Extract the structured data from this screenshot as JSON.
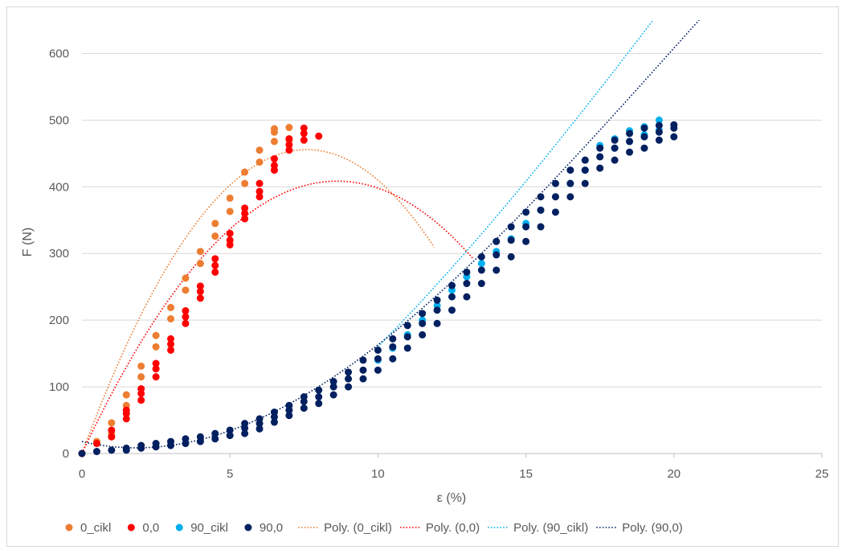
{
  "chart_data": {
    "type": "scatter",
    "xlabel": "ε (%)",
    "ylabel": "F (N)",
    "xlim": [
      0,
      25
    ],
    "ylim": [
      0,
      650
    ],
    "x_ticks": [
      "0",
      "5",
      "10",
      "15",
      "20",
      "25"
    ],
    "y_ticks": [
      "0",
      "100",
      "200",
      "300",
      "400",
      "500",
      "600"
    ],
    "grid": "horizontal",
    "legend": "bottom",
    "series": [
      {
        "name": "0_cikl",
        "color": "#ED7D31",
        "points": [
          [
            0,
            0
          ],
          [
            0.5,
            18
          ],
          [
            1,
            30
          ],
          [
            1,
            46
          ],
          [
            1.5,
            72
          ],
          [
            1.5,
            88
          ],
          [
            2,
            115
          ],
          [
            2,
            131
          ],
          [
            2.5,
            160
          ],
          [
            2.5,
            177
          ],
          [
            3,
            202
          ],
          [
            3,
            219
          ],
          [
            3.5,
            245
          ],
          [
            3.5,
            263
          ],
          [
            4,
            285
          ],
          [
            4,
            303
          ],
          [
            4.5,
            326
          ],
          [
            4.5,
            345
          ],
          [
            5,
            363
          ],
          [
            5,
            383
          ],
          [
            5.5,
            405
          ],
          [
            5.5,
            422
          ],
          [
            6,
            437
          ],
          [
            6,
            455
          ],
          [
            6.5,
            468
          ],
          [
            6.5,
            482
          ],
          [
            6.5,
            487
          ],
          [
            7,
            470
          ],
          [
            7,
            489
          ]
        ]
      },
      {
        "name": "0,0",
        "color": "#FF0000",
        "points": [
          [
            0,
            0
          ],
          [
            0.5,
            15
          ],
          [
            1,
            25
          ],
          [
            1,
            35
          ],
          [
            1.5,
            52
          ],
          [
            1.5,
            60
          ],
          [
            1.5,
            65
          ],
          [
            2,
            80
          ],
          [
            2,
            90
          ],
          [
            2,
            97
          ],
          [
            2.5,
            115
          ],
          [
            2.5,
            127
          ],
          [
            2.5,
            135
          ],
          [
            3,
            155
          ],
          [
            3,
            164
          ],
          [
            3,
            172
          ],
          [
            3.5,
            195
          ],
          [
            3.5,
            205
          ],
          [
            3.5,
            214
          ],
          [
            4,
            233
          ],
          [
            4,
            243
          ],
          [
            4,
            251
          ],
          [
            4.5,
            272
          ],
          [
            4.5,
            282
          ],
          [
            4.5,
            292
          ],
          [
            5,
            313
          ],
          [
            5,
            320
          ],
          [
            5,
            330
          ],
          [
            5.5,
            352
          ],
          [
            5.5,
            360
          ],
          [
            5.5,
            368
          ],
          [
            6,
            385
          ],
          [
            6,
            393
          ],
          [
            6,
            405
          ],
          [
            6.5,
            425
          ],
          [
            6.5,
            432
          ],
          [
            6.5,
            442
          ],
          [
            7,
            455
          ],
          [
            7,
            463
          ],
          [
            7,
            472
          ],
          [
            7.5,
            470
          ],
          [
            7.5,
            480
          ],
          [
            7.5,
            488
          ],
          [
            8,
            476
          ]
        ]
      },
      {
        "name": "90_cikl",
        "color": "#00B0F0",
        "points": [
          [
            10,
            140
          ],
          [
            10.5,
            158
          ],
          [
            11,
            178
          ],
          [
            11.5,
            200
          ],
          [
            12,
            222
          ],
          [
            12.5,
            245
          ],
          [
            13,
            265
          ],
          [
            13.5,
            285
          ],
          [
            14,
            303
          ],
          [
            14.5,
            322
          ],
          [
            15,
            345
          ],
          [
            15.5,
            365
          ],
          [
            16,
            385
          ],
          [
            16.5,
            405
          ],
          [
            17,
            425
          ],
          [
            17,
            440
          ],
          [
            17.5,
            445
          ],
          [
            17.5,
            462
          ],
          [
            18,
            458
          ],
          [
            18,
            472
          ],
          [
            18.5,
            468
          ],
          [
            18.5,
            484
          ],
          [
            19,
            478
          ],
          [
            19,
            490
          ],
          [
            19.5,
            485
          ],
          [
            19.5,
            500
          ]
        ]
      },
      {
        "name": "90,0",
        "color": "#002060",
        "points": [
          [
            0,
            0
          ],
          [
            0.5,
            3
          ],
          [
            1,
            5
          ],
          [
            1.5,
            5
          ],
          [
            1.5,
            8
          ],
          [
            2,
            8
          ],
          [
            2,
            12
          ],
          [
            2.5,
            10
          ],
          [
            2.5,
            15
          ],
          [
            3,
            12
          ],
          [
            3,
            18
          ],
          [
            3.5,
            15
          ],
          [
            3.5,
            22
          ],
          [
            4,
            18
          ],
          [
            4,
            25
          ],
          [
            4.5,
            22
          ],
          [
            4.5,
            30
          ],
          [
            5,
            27
          ],
          [
            5,
            35
          ],
          [
            5.5,
            30
          ],
          [
            5.5,
            38
          ],
          [
            5.5,
            45
          ],
          [
            6,
            37
          ],
          [
            6,
            45
          ],
          [
            6,
            52
          ],
          [
            6.5,
            47
          ],
          [
            6.5,
            55
          ],
          [
            6.5,
            62
          ],
          [
            7,
            57
          ],
          [
            7,
            65
          ],
          [
            7,
            72
          ],
          [
            7.5,
            68
          ],
          [
            7.5,
            78
          ],
          [
            7.5,
            85
          ],
          [
            8,
            75
          ],
          [
            8,
            85
          ],
          [
            8,
            95
          ],
          [
            8.5,
            88
          ],
          [
            8.5,
            100
          ],
          [
            8.5,
            108
          ],
          [
            9,
            100
          ],
          [
            9,
            112
          ],
          [
            9,
            122
          ],
          [
            9.5,
            112
          ],
          [
            9.5,
            125
          ],
          [
            9.5,
            140
          ],
          [
            10,
            125
          ],
          [
            10,
            142
          ],
          [
            10,
            155
          ],
          [
            10.5,
            142
          ],
          [
            10.5,
            160
          ],
          [
            10.5,
            172
          ],
          [
            11,
            158
          ],
          [
            11,
            175
          ],
          [
            11,
            192
          ],
          [
            11.5,
            178
          ],
          [
            11.5,
            195
          ],
          [
            11.5,
            210
          ],
          [
            12,
            195
          ],
          [
            12,
            215
          ],
          [
            12,
            230
          ],
          [
            12.5,
            215
          ],
          [
            12.5,
            235
          ],
          [
            12.5,
            252
          ],
          [
            13,
            235
          ],
          [
            13,
            255
          ],
          [
            13,
            272
          ],
          [
            13.5,
            255
          ],
          [
            13.5,
            275
          ],
          [
            13.5,
            295
          ],
          [
            14,
            275
          ],
          [
            14,
            298
          ],
          [
            14,
            318
          ],
          [
            14.5,
            295
          ],
          [
            14.5,
            320
          ],
          [
            14.5,
            340
          ],
          [
            15,
            318
          ],
          [
            15,
            340
          ],
          [
            15,
            362
          ],
          [
            15.5,
            340
          ],
          [
            15.5,
            365
          ],
          [
            15.5,
            385
          ],
          [
            16,
            362
          ],
          [
            16,
            385
          ],
          [
            16,
            405
          ],
          [
            16.5,
            385
          ],
          [
            16.5,
            405
          ],
          [
            16.5,
            425
          ],
          [
            17,
            405
          ],
          [
            17,
            425
          ],
          [
            17,
            440
          ],
          [
            17.5,
            428
          ],
          [
            17.5,
            445
          ],
          [
            17.5,
            458
          ],
          [
            18,
            440
          ],
          [
            18,
            458
          ],
          [
            18,
            470
          ],
          [
            18.5,
            452
          ],
          [
            18.5,
            468
          ],
          [
            18.5,
            480
          ],
          [
            19,
            458
          ],
          [
            19,
            475
          ],
          [
            19,
            488
          ],
          [
            19.5,
            470
          ],
          [
            19.5,
            482
          ],
          [
            19.5,
            492
          ],
          [
            20,
            475
          ],
          [
            20,
            488
          ],
          [
            20,
            493
          ]
        ]
      }
    ],
    "trendlines": [
      {
        "name": "Poly. (0_cikl)",
        "color": "#ED7D31",
        "coeffs": [
          0,
          120,
          -7.9,
          0
        ],
        "x_start": 0,
        "x_end": 11.9
      },
      {
        "name": "Poly. (0,0)",
        "color": "#FF0000",
        "coeffs": [
          0,
          94.8,
          -5.5,
          0
        ],
        "x_start": 0,
        "x_end": 13.2
      },
      {
        "name": "Poly. (90_cikl)",
        "color": "#00B0F0",
        "coeffs": [
          -148.3,
          14.3,
          1.93,
          -0.0273
        ],
        "x_start": 10,
        "x_end": 25
      },
      {
        "name": "Poly. (90,0)",
        "color": "#002060",
        "coeffs": [
          18,
          -10.5,
          3.0,
          -0.05
        ],
        "x_start": 0,
        "x_end": 25
      }
    ]
  }
}
